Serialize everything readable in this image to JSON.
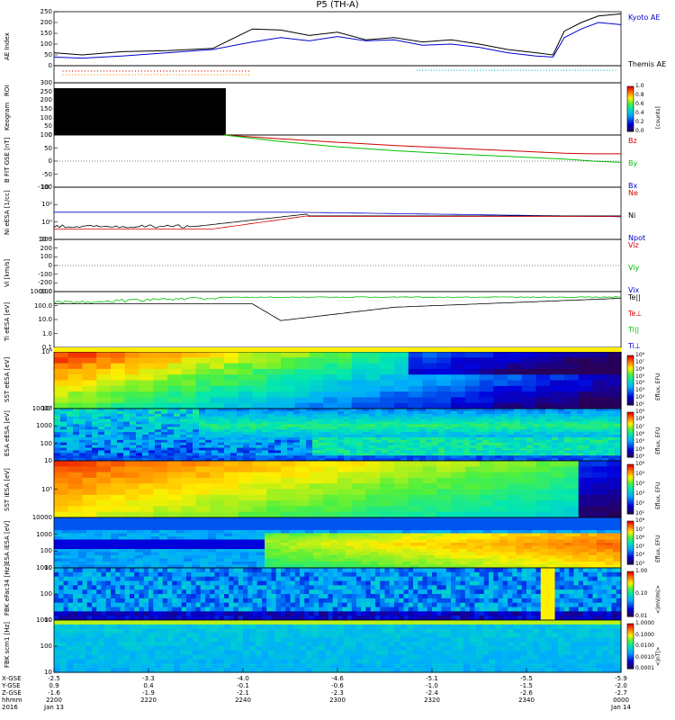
{
  "title": "P5 (TH-A)",
  "colors": {
    "red": "#d00000",
    "green": "#00c000",
    "blue": "#0000d0",
    "black": "#000000"
  },
  "chart_data": [
    {
      "id": "ae",
      "type": "line",
      "ylabel": "AE Index",
      "yticks": [
        "250",
        "200",
        "150",
        "100",
        "50",
        "0"
      ],
      "ylim": [
        0,
        250
      ],
      "legend": [
        "Kyoto AE",
        "Themis AE"
      ],
      "series": [
        {
          "name": "Kyoto AE",
          "color": "#0000d0",
          "x": [
            0,
            0.05,
            0.12,
            0.2,
            0.28,
            0.35,
            0.4,
            0.45,
            0.5,
            0.55,
            0.6,
            0.65,
            0.7,
            0.75,
            0.8,
            0.85,
            0.88,
            0.9,
            0.93,
            0.96,
            1.0
          ],
          "y": [
            40,
            35,
            45,
            60,
            75,
            110,
            130,
            115,
            135,
            115,
            120,
            95,
            100,
            85,
            60,
            45,
            40,
            130,
            170,
            200,
            190
          ]
        },
        {
          "name": "Themis AE",
          "color": "#000000",
          "x": [
            0,
            0.05,
            0.12,
            0.2,
            0.28,
            0.35,
            0.4,
            0.45,
            0.5,
            0.55,
            0.6,
            0.65,
            0.7,
            0.75,
            0.8,
            0.85,
            0.88,
            0.9,
            0.93,
            0.96,
            1.0
          ],
          "y": [
            60,
            50,
            65,
            70,
            80,
            170,
            165,
            140,
            155,
            120,
            130,
            110,
            120,
            100,
            75,
            60,
            50,
            160,
            200,
            230,
            240
          ]
        }
      ]
    },
    {
      "id": "roi",
      "type": "scatter",
      "ylabel": "ROI"
    },
    {
      "id": "keogram",
      "type": "heatmap",
      "ylabel": "Keogram",
      "yticks": [
        "300",
        "250",
        "200",
        "150",
        "100",
        "50",
        "0"
      ],
      "colorbar": {
        "label": "[counts]",
        "ticks": [
          "1.0",
          "0.8",
          "0.6",
          "0.4",
          "0.2",
          "0.0"
        ]
      }
    },
    {
      "id": "bfield",
      "type": "line",
      "ylabel": "B FIT GSE [nT]",
      "yticks": [
        "100",
        "50",
        "0",
        "-50",
        "-100"
      ],
      "ylim": [
        -100,
        100
      ],
      "legend": [
        "Bz",
        "By",
        "Bx"
      ],
      "series": [
        {
          "name": "Bz",
          "color": "#d00000",
          "x": [
            0.3,
            0.4,
            0.5,
            0.6,
            0.7,
            0.8,
            0.9,
            0.95,
            1.0
          ],
          "y": [
            100,
            85,
            72,
            60,
            50,
            40,
            30,
            28,
            28
          ]
        },
        {
          "name": "By",
          "color": "#00c000",
          "x": [
            0.3,
            0.4,
            0.5,
            0.6,
            0.7,
            0.8,
            0.9,
            0.95,
            1.0
          ],
          "y": [
            100,
            75,
            55,
            40,
            28,
            18,
            8,
            0,
            -5
          ]
        }
      ]
    },
    {
      "id": "density",
      "type": "line",
      "ylabel": "Ni eESA [1/cc]",
      "yticks": [
        "10´",
        "10²",
        "10⁰",
        "10⁻²"
      ],
      "legend": [
        "Ne",
        "Ni",
        "Npot"
      ]
    },
    {
      "id": "velocity",
      "type": "line",
      "ylabel": "Vi [km/s]",
      "yticks": [
        "300",
        "200",
        "100",
        "0",
        "-100",
        "-200",
        "-300"
      ],
      "ylim": [
        -300,
        300
      ],
      "legend": [
        "Viz",
        "Viy",
        "Vix"
      ]
    },
    {
      "id": "temp",
      "type": "line",
      "ylabel": "Ti eESA [eV]",
      "yticks": [
        "1000.0",
        "100.0",
        "10.0",
        "1.0",
        "0.1"
      ],
      "legend": [
        "Te||",
        "Te⊥",
        "Ti||",
        "Ti⊥"
      ]
    },
    {
      "id": "sst_e",
      "type": "heatmap",
      "ylabel": "SST eESA [eV]",
      "yticks": [
        "10⁴",
        "10²"
      ],
      "colorbar": {
        "label": "Eflux, EFU",
        "ticks": [
          "10⁸",
          "10⁷",
          "10⁶",
          "10⁵",
          "10⁴",
          "10³",
          "10²",
          "10¹"
        ]
      }
    },
    {
      "id": "esa_e",
      "type": "heatmap",
      "ylabel": "ESA eESA [eV]",
      "yticks": [
        "10000",
        "1000",
        "100",
        "10"
      ],
      "colorbar": {
        "label": "Eflux, EFU",
        "ticks": [
          "10⁹",
          "10⁸",
          "10⁷",
          "10⁶",
          "10⁵",
          "10⁴",
          "10³"
        ]
      }
    },
    {
      "id": "sst_i",
      "type": "heatmap",
      "ylabel": "SST iESA [eV]",
      "yticks": [
        "10⁵"
      ],
      "colorbar": {
        "label": "Eflux, EFU",
        "ticks": [
          "10⁶",
          "10⁵",
          "10⁴",
          "10³",
          "10²",
          "10¹"
        ]
      }
    },
    {
      "id": "esa_i",
      "type": "heatmap",
      "ylabel": "ESA iESA [eV]",
      "yticks": [
        "10000",
        "1000",
        "100",
        "10"
      ],
      "colorbar": {
        "label": "Eflux, EFU",
        "ticks": [
          "10⁸",
          "10⁷",
          "10⁶",
          "10⁵",
          "10⁴",
          "10³"
        ]
      }
    },
    {
      "id": "fbk_e",
      "type": "heatmap",
      "ylabel": "FBK eFac34 [Hz]",
      "yticks": [
        "1000",
        "100",
        "10"
      ],
      "colorbar": {
        "label": "<|mV/m|>",
        "ticks": [
          "1.00",
          "0.10",
          "0.01"
        ]
      }
    },
    {
      "id": "fbk_b",
      "type": "heatmap",
      "ylabel": "FBK scm1 [Hz]",
      "yticks": [
        "1000",
        "100",
        "10"
      ],
      "colorbar": {
        "label": "<|nT|>",
        "ticks": [
          "1.0000",
          "0.1000",
          "0.0100",
          "0.0010",
          "0.0001"
        ]
      }
    }
  ],
  "xaxis": {
    "rows": [
      {
        "label": "X-GSE",
        "values": [
          "-2.5",
          "-3.3",
          "-4.0",
          "-4.6",
          "-5.1",
          "-5.5",
          "-5.9"
        ]
      },
      {
        "label": "Y-GSE",
        "values": [
          "0.9",
          "0.4",
          "-0.1",
          "-0.6",
          "-1.0",
          "-1.5",
          "-2.0"
        ]
      },
      {
        "label": "Z-GSE",
        "values": [
          "-1.6",
          "-1.9",
          "-2.1",
          "-2.3",
          "-2.4",
          "-2.6",
          "-2.7"
        ]
      },
      {
        "label": "hhmm",
        "values": [
          "2200",
          "2220",
          "2240",
          "2300",
          "2320",
          "2340",
          "0000"
        ]
      },
      {
        "label": "2016",
        "values": [
          "Jan 13",
          "",
          "",
          "",
          "",
          "",
          "Jan 14"
        ]
      }
    ]
  }
}
